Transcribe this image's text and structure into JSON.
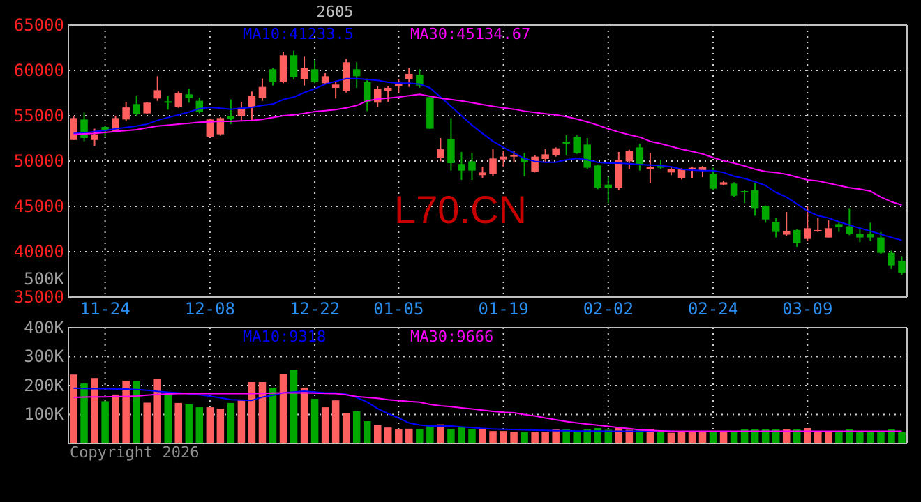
{
  "chart_data": [
    {
      "type": "candlestick",
      "title": "2605",
      "legend": "top",
      "grid": true,
      "categories": [
        null,
        null,
        null,
        "11-24",
        null,
        null,
        null,
        null,
        null,
        null,
        null,
        null,
        null,
        "12-08",
        null,
        null,
        null,
        null,
        null,
        null,
        null,
        null,
        null,
        "12-22",
        null,
        null,
        null,
        null,
        null,
        null,
        null,
        "01-05",
        null,
        null,
        null,
        null,
        null,
        null,
        null,
        null,
        null,
        "01-19",
        null,
        null,
        null,
        null,
        null,
        null,
        null,
        null,
        null,
        "02-02",
        null,
        null,
        null,
        null,
        null,
        null,
        null,
        null,
        null,
        "02-24",
        null,
        null,
        null,
        null,
        null,
        null,
        null,
        null,
        "03-09",
        null,
        null,
        null,
        null,
        null,
        null,
        null,
        null,
        null
      ],
      "ylim": [
        35000,
        65000
      ],
      "yticks": [
        35000,
        40000,
        45000,
        50000,
        55000,
        60000,
        65000
      ],
      "ohlc": [
        [
          52330,
          55000,
          52330,
          54740
        ],
        [
          54590,
          55360,
          52180,
          52540
        ],
        [
          52330,
          53570,
          51670,
          52950
        ],
        [
          53770,
          53870,
          52690,
          53460
        ],
        [
          53310,
          55000,
          53200,
          54740
        ],
        [
          54590,
          56540,
          54380,
          55920
        ],
        [
          56280,
          57200,
          55000,
          55200
        ],
        [
          55260,
          56540,
          55150,
          56440
        ],
        [
          56900,
          59360,
          56640,
          57820
        ],
        [
          56590,
          57200,
          55670,
          56440
        ],
        [
          55970,
          57670,
          55870,
          57510
        ],
        [
          57360,
          57970,
          56440,
          56950
        ],
        [
          56640,
          57000,
          55260,
          55410
        ],
        [
          52690,
          54700,
          52590,
          54590
        ],
        [
          52950,
          54850,
          52800,
          54740
        ],
        [
          55000,
          56800,
          54080,
          54690
        ],
        [
          55000,
          56540,
          54490,
          55870
        ],
        [
          55920,
          57670,
          54490,
          57200
        ],
        [
          56950,
          59100,
          56640,
          58180
        ],
        [
          60130,
          60230,
          58330,
          58700
        ],
        [
          58700,
          62080,
          58590,
          61670
        ],
        [
          61670,
          62180,
          59000,
          59260
        ],
        [
          59000,
          61510,
          58330,
          60280
        ],
        [
          60130,
          61150,
          58590,
          58740
        ],
        [
          58590,
          59720,
          58480,
          59360
        ],
        [
          58080,
          58850,
          56900,
          58440
        ],
        [
          57720,
          61260,
          57560,
          60900
        ],
        [
          60130,
          60900,
          58080,
          59360
        ],
        [
          58700,
          59100,
          55520,
          56540
        ],
        [
          56440,
          58230,
          55970,
          57970
        ],
        [
          57770,
          58280,
          56540,
          58080
        ],
        [
          58280,
          59000,
          57560,
          58590
        ],
        [
          59000,
          60280,
          58180,
          59620
        ],
        [
          59510,
          60130,
          58080,
          58330
        ],
        [
          57050,
          57150,
          53570,
          53570
        ],
        [
          50380,
          52540,
          49970,
          51300
        ],
        [
          52440,
          54740,
          48950,
          49770
        ],
        [
          49670,
          51000,
          47920,
          48950
        ],
        [
          49970,
          50900,
          47920,
          48950
        ],
        [
          48440,
          49360,
          48080,
          48740
        ],
        [
          48590,
          51300,
          48330,
          50280
        ],
        [
          50180,
          51150,
          49360,
          50490
        ],
        [
          50540,
          51150,
          49870,
          50640
        ],
        [
          50380,
          50900,
          48330,
          49870
        ],
        [
          48850,
          50640,
          48740,
          50490
        ],
        [
          50230,
          51300,
          49870,
          50740
        ],
        [
          50640,
          51510,
          50490,
          51410
        ],
        [
          52130,
          52850,
          50640,
          51920
        ],
        [
          52690,
          52850,
          50790,
          50900
        ],
        [
          51820,
          52540,
          49100,
          49260
        ],
        [
          49510,
          49620,
          46900,
          47050
        ],
        [
          47410,
          48230,
          45360,
          47000
        ],
        [
          47050,
          51000,
          46800,
          50130
        ],
        [
          49970,
          51250,
          49100,
          51150
        ],
        [
          51510,
          51920,
          48950,
          49620
        ],
        [
          49100,
          50900,
          47560,
          49360
        ],
        [
          49460,
          50130,
          49100,
          49260
        ],
        [
          48740,
          49360,
          48440,
          49100
        ],
        [
          48080,
          49200,
          47970,
          49100
        ],
        [
          49150,
          49360,
          48080,
          49260
        ],
        [
          49000,
          49460,
          48230,
          49360
        ],
        [
          48590,
          49260,
          46800,
          46950
        ],
        [
          47410,
          47820,
          47300,
          47660
        ],
        [
          47510,
          47660,
          46020,
          46180
        ],
        [
          46690,
          46800,
          45360,
          46590
        ],
        [
          46800,
          47560,
          43970,
          44740
        ],
        [
          45000,
          45100,
          43200,
          43560
        ],
        [
          43300,
          43720,
          41570,
          42180
        ],
        [
          41880,
          44380,
          41770,
          42280
        ],
        [
          42390,
          42490,
          40540,
          40950
        ],
        [
          41410,
          45000,
          41160,
          42590
        ],
        [
          42280,
          43720,
          42180,
          42390
        ],
        [
          41570,
          43460,
          41570,
          42590
        ],
        [
          43050,
          43300,
          42180,
          42690
        ],
        [
          42800,
          44740,
          41830,
          41930
        ],
        [
          41980,
          42690,
          41060,
          41570
        ],
        [
          41930,
          43200,
          41160,
          41570
        ],
        [
          41570,
          42180,
          39720,
          39870
        ],
        [
          39870,
          40130,
          38080,
          38490
        ],
        [
          39000,
          39510,
          37460,
          37660
        ]
      ],
      "colors": [
        "#ff5f5f",
        "#00a800",
        "#ff5f5f",
        "#00a800",
        "#ff5f5f",
        "#ff5f5f",
        "#00a800",
        "#ff5f5f",
        "#ff5f5f",
        "#00a800",
        "#ff5f5f",
        "#00a800",
        "#00a800",
        "#ff5f5f",
        "#ff5f5f",
        "#00a800",
        "#ff5f5f",
        "#ff5f5f",
        "#ff5f5f",
        "#00a800",
        "#ff5f5f",
        "#00a800",
        "#ff5f5f",
        "#00a800",
        "#ff5f5f",
        "#ff5f5f",
        "#ff5f5f",
        "#00a800",
        "#00a800",
        "#ff5f5f",
        "#ff5f5f",
        "#ff5f5f",
        "#ff5f5f",
        "#00a800",
        "#00a800",
        "#ff5f5f",
        "#00a800",
        "#00a800",
        "#00a800",
        "#ff5f5f",
        "#ff5f5f",
        "#ff5f5f",
        "#ff5f5f",
        "#00a800",
        "#ff5f5f",
        "#ff5f5f",
        "#ff5f5f",
        "#00a800",
        "#00a800",
        "#00a800",
        "#00a800",
        "#00a800",
        "#ff5f5f",
        "#ff5f5f",
        "#00a800",
        "#ff5f5f",
        "#00a800",
        "#ff5f5f",
        "#ff5f5f",
        "#ff5f5f",
        "#ff5f5f",
        "#00a800",
        "#ff5f5f",
        "#00a800",
        "#00a800",
        "#00a800",
        "#00a800",
        "#00a800",
        "#ff5f5f",
        "#00a800",
        "#ff5f5f",
        "#ff5f5f",
        "#ff5f5f",
        "#00a800",
        "#00a800",
        "#00a800",
        "#00a800",
        "#00a800",
        "#00a800",
        "#00a800"
      ],
      "series": [
        {
          "name": "MA10:41233.5",
          "type": "line",
          "color": "#0000ff",
          "values": [
            53050,
            53100,
            53260,
            53360,
            53560,
            53720,
            53870,
            54080,
            54490,
            54800,
            55100,
            55410,
            55770,
            55920,
            55820,
            55720,
            55820,
            55920,
            56130,
            56280,
            56790,
            57050,
            57560,
            57970,
            58490,
            58800,
            59100,
            59100,
            59000,
            58900,
            58690,
            58590,
            58590,
            58490,
            58080,
            57050,
            56030,
            55000,
            53970,
            53050,
            52180,
            51510,
            50900,
            50280,
            49970,
            49870,
            49870,
            50130,
            50280,
            50130,
            49870,
            49770,
            49770,
            49720,
            49620,
            49560,
            49510,
            49360,
            49100,
            49000,
            48950,
            48950,
            48740,
            48330,
            48080,
            47720,
            47310,
            46540,
            46030,
            45260,
            44490,
            43980,
            43720,
            43310,
            42950,
            42590,
            42280,
            41920,
            41570,
            41260
          ]
        },
        {
          "name": "MA30:45134.67",
          "type": "line",
          "color": "#ff00ff",
          "values": [
            52950,
            53000,
            53050,
            53150,
            53260,
            53360,
            53460,
            53670,
            53870,
            53970,
            54080,
            54180,
            54280,
            54330,
            54390,
            54390,
            54440,
            54490,
            54590,
            54800,
            55000,
            55100,
            55260,
            55460,
            55560,
            55670,
            55870,
            56130,
            56640,
            56850,
            56950,
            57050,
            57210,
            57360,
            57150,
            56950,
            56790,
            56640,
            56440,
            56230,
            56030,
            55870,
            55720,
            55510,
            55360,
            55210,
            55100,
            54900,
            54640,
            54330,
            53970,
            53560,
            53200,
            52900,
            52640,
            52180,
            51920,
            51620,
            51310,
            51050,
            50790,
            50380,
            50030,
            49770,
            49460,
            49100,
            48850,
            48740,
            48540,
            48230,
            47920,
            47810,
            47560,
            47310,
            47050,
            46900,
            46690,
            46030,
            45510,
            45150
          ]
        }
      ],
      "annotations": [
        "L70.CN",
        "500K"
      ]
    },
    {
      "type": "bar",
      "legend": "top",
      "grid": true,
      "tick_labels": "y",
      "categories": [
        null,
        null,
        null,
        null,
        null,
        null,
        null,
        null,
        null,
        null,
        null,
        null,
        null,
        null,
        null,
        null,
        null,
        null,
        null,
        null,
        null,
        null,
        null,
        null,
        null,
        null,
        null,
        null,
        null,
        null,
        null,
        null,
        null,
        null,
        null,
        null,
        null,
        null,
        null,
        null,
        null,
        null,
        null,
        null,
        null,
        null,
        null,
        null,
        null,
        null,
        null,
        null,
        null,
        null,
        null,
        null,
        null,
        null,
        null,
        null,
        null,
        null,
        null,
        null,
        null,
        null,
        null,
        null,
        null,
        null,
        null,
        null,
        null,
        null,
        null,
        null,
        null,
        null,
        null,
        null
      ],
      "ylim": [
        0,
        400000
      ],
      "yticks": [
        {
          "value": 100000,
          "label": "100K"
        },
        {
          "value": 200000,
          "label": "200K"
        },
        {
          "value": 300000,
          "label": "300K"
        },
        {
          "value": 400000,
          "label": "400K"
        }
      ],
      "series": [
        {
          "type": "bar",
          "values": [
            238000,
            207000,
            226000,
            146000,
            169000,
            217000,
            217000,
            141000,
            222000,
            172000,
            140000,
            135000,
            125000,
            125000,
            120000,
            140000,
            151000,
            212000,
            212000,
            193000,
            241000,
            255000,
            193000,
            154000,
            125000,
            149000,
            106000,
            111000,
            77000,
            63000,
            55000,
            48000,
            51000,
            50000,
            63000,
            66000,
            50000,
            58000,
            50000,
            50000,
            43000,
            43000,
            40000,
            39000,
            39000,
            39000,
            48000,
            48000,
            43000,
            48000,
            53000,
            47000,
            55000,
            47000,
            48000,
            50000,
            40000,
            37000,
            39000,
            42000,
            42000,
            42000,
            42000,
            42000,
            48000,
            48000,
            48000,
            48000,
            48000,
            48000,
            53000,
            39000,
            39000,
            39000,
            48000,
            39000,
            42000,
            42000,
            48000,
            39000
          ],
          "colors": [
            "#ff5f5f",
            "#00a800",
            "#ff5f5f",
            "#00a800",
            "#ff5f5f",
            "#ff5f5f",
            "#00a800",
            "#ff5f5f",
            "#ff5f5f",
            "#00a800",
            "#ff5f5f",
            "#00a800",
            "#00a800",
            "#ff5f5f",
            "#ff5f5f",
            "#00a800",
            "#ff5f5f",
            "#ff5f5f",
            "#ff5f5f",
            "#00a800",
            "#ff5f5f",
            "#00a800",
            "#ff5f5f",
            "#00a800",
            "#ff5f5f",
            "#ff5f5f",
            "#ff5f5f",
            "#00a800",
            "#00a800",
            "#ff5f5f",
            "#ff5f5f",
            "#ff5f5f",
            "#ff5f5f",
            "#00a800",
            "#00a800",
            "#ff5f5f",
            "#00a800",
            "#00a800",
            "#00a800",
            "#ff5f5f",
            "#ff5f5f",
            "#ff5f5f",
            "#ff5f5f",
            "#00a800",
            "#ff5f5f",
            "#ff5f5f",
            "#ff5f5f",
            "#00a800",
            "#00a800",
            "#00a800",
            "#00a800",
            "#00a800",
            "#ff5f5f",
            "#ff5f5f",
            "#00a800",
            "#ff5f5f",
            "#00a800",
            "#ff5f5f",
            "#ff5f5f",
            "#ff5f5f",
            "#ff5f5f",
            "#00a800",
            "#ff5f5f",
            "#00a800",
            "#00a800",
            "#00a800",
            "#00a800",
            "#00a800",
            "#ff5f5f",
            "#00a800",
            "#ff5f5f",
            "#ff5f5f",
            "#ff5f5f",
            "#00a800",
            "#00a800",
            "#00a800",
            "#00a800",
            "#00a800",
            "#00a800",
            "#00a800"
          ]
        },
        {
          "name": "MA10:9318",
          "type": "line",
          "color": "#0000ff",
          "values": [
            191000,
            190000,
            189000,
            189000,
            188000,
            188000,
            186000,
            184000,
            180000,
            177000,
            175000,
            172000,
            168000,
            163000,
            158000,
            151000,
            150000,
            149000,
            160000,
            166000,
            175000,
            178000,
            181000,
            178000,
            175000,
            175000,
            170000,
            159000,
            143000,
            120000,
            103000,
            88000,
            71000,
            64000,
            60000,
            60000,
            60000,
            57000,
            55000,
            52000,
            50000,
            49000,
            48000,
            47000,
            46000,
            45000,
            44000,
            44000,
            43000,
            43000,
            43000,
            42000,
            42000,
            42000,
            42000,
            42000,
            42000,
            42000,
            null,
            null,
            null,
            null,
            null,
            null,
            null,
            null,
            null,
            null,
            null,
            null,
            null,
            null,
            null,
            null,
            null,
            null,
            null,
            null,
            null,
            null
          ]
        },
        {
          "name": "MA30:9666",
          "type": "line",
          "color": "#ff00ff",
          "values": [
            159000,
            160000,
            161000,
            161000,
            162000,
            162000,
            164000,
            167000,
            169000,
            171000,
            172000,
            172000,
            172000,
            172000,
            172000,
            172000,
            172000,
            172000,
            173000,
            174000,
            175000,
            175000,
            175000,
            174000,
            173000,
            172000,
            168000,
            162000,
            159000,
            156000,
            151000,
            148000,
            145000,
            143000,
            135000,
            130000,
            127000,
            123000,
            119000,
            115000,
            111000,
            108000,
            106000,
            100000,
            95000,
            88000,
            82000,
            76000,
            71000,
            67000,
            63000,
            59000,
            55000,
            51000,
            47000,
            45000,
            43500,
            42000,
            42000,
            42000,
            42000,
            42000,
            42000,
            42000,
            42000,
            42000,
            42000,
            42000,
            42000,
            42000,
            42000,
            42000,
            42000,
            42000,
            42000,
            42000,
            42000,
            42000,
            42000,
            42000
          ]
        }
      ],
      "annotations": [
        "Copyright 2026"
      ]
    }
  ]
}
